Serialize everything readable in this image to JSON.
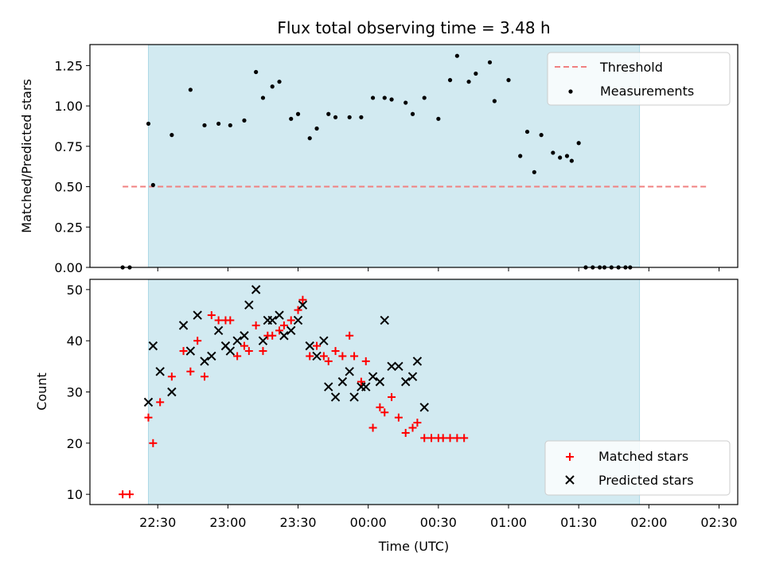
{
  "title": "Flux total observing time = 3.48 h",
  "colors": {
    "band": "#add8e6",
    "threshold": "#f08080",
    "matched": "#ff0000",
    "predicted": "#000000",
    "measurement": "#000000"
  },
  "chart_data": [
    {
      "type": "scatter",
      "ylabel": "Matched/Predicted stars",
      "ylim": [
        0,
        1.38
      ],
      "yticks": [
        "0.00",
        "0.25",
        "0.50",
        "0.75",
        "1.00",
        "1.25"
      ],
      "legend": {
        "position": "top-right",
        "entries": [
          "Threshold",
          "Measurements"
        ]
      },
      "shaded_interval": [
        "22:26",
        "01:56"
      ],
      "threshold": {
        "name": "Threshold",
        "value": 0.5,
        "x_range": [
          "22:15",
          "02:25"
        ]
      },
      "series": [
        {
          "name": "Measurements",
          "x": [
            "22:15",
            "22:18",
            "22:26",
            "22:28",
            "22:31",
            "22:36",
            "22:41",
            "22:44",
            "22:47",
            "22:50",
            "22:53",
            "22:56",
            "22:59",
            "23:01",
            "23:04",
            "23:07",
            "23:09",
            "23:12",
            "23:15",
            "23:17",
            "23:19",
            "23:22",
            "23:24",
            "23:27",
            "23:30",
            "23:32",
            "23:35",
            "23:38",
            "23:41",
            "23:43",
            "23:46",
            "23:49",
            "23:52",
            "23:54",
            "23:57",
            "23:59",
            "00:02",
            "00:05",
            "00:07",
            "00:10",
            "00:13",
            "00:16",
            "00:19",
            "00:21",
            "00:24",
            "00:27",
            "00:30",
            "00:32",
            "00:35",
            "00:38",
            "00:41",
            "00:43",
            "00:46",
            "00:49",
            "00:52",
            "00:54",
            "00:57",
            "01:00",
            "01:02",
            "01:05",
            "01:08",
            "01:11",
            "01:14",
            "01:16",
            "01:19",
            "01:22",
            "01:25",
            "01:27",
            "01:30",
            "01:33",
            "01:36",
            "01:39",
            "01:41",
            "01:44",
            "01:47",
            "01:50",
            "01:52",
            "01:55",
            "01:58",
            "02:00",
            "02:03",
            "02:06",
            "02:09",
            "02:12",
            "02:14",
            "02:17",
            "02:20",
            "02:23"
          ],
          "y": [
            0,
            0,
            0.89,
            0.51,
            null,
            0.82,
            null,
            1.1,
            null,
            0.88,
            null,
            0.89,
            null,
            0.88,
            null,
            0.91,
            null,
            1.21,
            1.05,
            null,
            1.12,
            1.15,
            null,
            0.92,
            0.95,
            null,
            0.8,
            0.86,
            null,
            0.95,
            0.93,
            null,
            0.93,
            null,
            0.93,
            null,
            1.05,
            null,
            1.05,
            1.04,
            null,
            1.02,
            0.95,
            null,
            1.05,
            null,
            0.92,
            null,
            1.16,
            1.31,
            null,
            1.15,
            1.2,
            null,
            1.27,
            1.03,
            null,
            1.16,
            null,
            0.69,
            0.84,
            0.59,
            0.82,
            null,
            0.71,
            0.68,
            0.69,
            0.66,
            0.77,
            0,
            0,
            0,
            0,
            0,
            0,
            0,
            0,
            null,
            null,
            null,
            null,
            null,
            null,
            null,
            null,
            null,
            null,
            null
          ]
        }
      ]
    },
    {
      "type": "scatter",
      "xlabel": "Time (UTC)",
      "ylabel": "Count",
      "ylim": [
        8,
        52
      ],
      "yticks": [
        "10",
        "20",
        "30",
        "40",
        "50"
      ],
      "xticks": [
        "22:30",
        "23:00",
        "23:30",
        "00:00",
        "00:30",
        "01:00",
        "01:30",
        "02:00",
        "02:30"
      ],
      "legend": {
        "position": "bottom-right",
        "entries": [
          "Matched stars",
          "Predicted stars"
        ]
      },
      "shaded_interval": [
        "22:26",
        "01:56"
      ],
      "series": [
        {
          "name": "Matched stars",
          "x": [
            "22:15",
            "22:18",
            "22:26",
            "22:28",
            "22:31",
            "22:36",
            "22:41",
            "22:44",
            "22:47",
            "22:50",
            "22:53",
            "22:56",
            "22:59",
            "23:01",
            "23:04",
            "23:07",
            "23:09",
            "23:12",
            "23:15",
            "23:17",
            "23:19",
            "23:22",
            "23:24",
            "23:27",
            "23:30",
            "23:32",
            "23:35",
            "23:38",
            "23:41",
            "23:43",
            "23:46",
            "23:49",
            "23:52",
            "23:54",
            "23:57",
            "23:59",
            "00:02",
            "00:05",
            "00:07",
            "00:10",
            "00:13",
            "00:16",
            "00:19",
            "00:21",
            "00:24",
            "00:27",
            "00:30",
            "00:32",
            "00:35",
            "00:38",
            "00:41",
            "00:43",
            "00:46",
            "00:49",
            "00:52",
            "00:54",
            "00:57",
            "01:00",
            "01:02",
            "01:05",
            "01:08",
            "01:11",
            "01:14",
            "01:16",
            "01:19",
            "01:22",
            "01:25",
            "01:27",
            "01:30",
            "01:33",
            "01:36",
            "01:39",
            "01:41",
            "01:44",
            "01:47",
            "01:50",
            "01:52",
            "01:55",
            "01:58",
            "02:00",
            "02:03",
            "02:06",
            "02:09",
            "02:12",
            "02:14"
          ],
          "y": [
            10,
            10,
            25,
            20,
            28,
            33,
            38,
            34,
            40,
            33,
            45,
            44,
            44,
            44,
            37,
            39,
            38,
            43,
            38,
            41,
            41,
            42,
            43,
            44,
            46,
            48,
            37,
            39,
            37,
            36,
            38,
            37,
            41,
            37,
            32,
            36,
            23,
            27,
            26,
            29,
            25,
            22,
            23,
            24,
            21,
            21,
            21,
            21,
            21,
            21,
            21,
            null,
            null,
            null,
            null,
            null,
            null,
            null,
            null,
            null,
            null,
            null,
            null,
            null,
            null,
            null,
            null,
            null,
            null,
            null,
            null,
            null,
            null,
            null,
            null,
            null,
            null,
            null,
            null,
            null,
            null,
            null,
            null,
            null,
            null
          ]
        },
        {
          "name": "Predicted stars",
          "x": [
            "22:26",
            "22:28",
            "22:31",
            "22:36",
            "22:41",
            "22:44",
            "22:47",
            "22:50",
            "22:53",
            "22:56",
            "22:59",
            "23:01",
            "23:04",
            "23:07",
            "23:09",
            "23:12",
            "23:15",
            "23:17",
            "23:19",
            "23:22",
            "23:24",
            "23:27",
            "23:30",
            "23:32",
            "23:35",
            "23:38",
            "23:41",
            "23:43",
            "23:46",
            "23:49",
            "23:52",
            "23:54",
            "23:57",
            "23:59",
            "00:02",
            "00:05",
            "00:07",
            "00:10",
            "00:13",
            "00:16",
            "00:19",
            "00:21",
            "00:24",
            "00:27",
            "00:30",
            "00:32",
            "00:35",
            "00:38",
            "00:41",
            "00:43",
            "00:46",
            "00:49",
            "00:52",
            "00:54",
            "00:57",
            "01:00",
            "01:02",
            "01:05"
          ],
          "y": [
            28,
            39,
            34,
            30,
            43,
            38,
            45,
            36,
            37,
            42,
            39,
            38,
            40,
            41,
            47,
            50,
            40,
            44,
            44,
            45,
            41,
            42,
            44,
            47,
            39,
            37,
            40,
            31,
            29,
            32,
            34,
            29,
            31,
            31,
            33,
            32,
            44,
            35,
            35,
            32,
            33,
            36,
            27,
            null,
            null,
            null,
            null,
            null,
            null,
            null,
            null,
            null,
            null,
            null,
            null,
            null,
            null,
            null
          ]
        }
      ]
    }
  ]
}
